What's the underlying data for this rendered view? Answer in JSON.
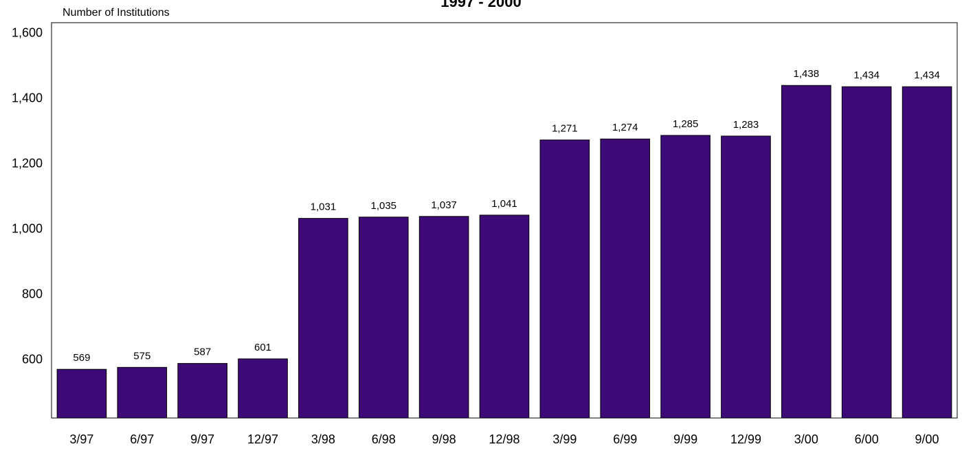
{
  "chart_data": {
    "type": "bar",
    "title": "1997 - 2000",
    "ylabel": "Number of Institutions",
    "xlabel": "",
    "categories": [
      "3/97",
      "6/97",
      "9/97",
      "12/97",
      "3/98",
      "6/98",
      "9/98",
      "12/98",
      "3/99",
      "6/99",
      "9/99",
      "12/99",
      "3/00",
      "6/00",
      "9/00"
    ],
    "values": [
      569,
      575,
      587,
      601,
      1031,
      1035,
      1037,
      1041,
      1271,
      1274,
      1285,
      1283,
      1438,
      1434,
      1434
    ],
    "value_labels": [
      "569",
      "575",
      "587",
      "601",
      "1,031",
      "1,035",
      "1,037",
      "1,041",
      "1,271",
      "1,274",
      "1,285",
      "1,283",
      "1,438",
      "1,434",
      "1,434"
    ],
    "ylim": [
      420,
      1630
    ],
    "yticks": [
      600,
      800,
      1000,
      1200,
      1400,
      1600
    ],
    "ytick_labels": [
      "600",
      "800",
      "1,000",
      "1,200",
      "1,400",
      "1,600"
    ],
    "grid": false,
    "legend": "none",
    "colors": {
      "bar": "#3d0a78",
      "bar_stroke": "#000000"
    }
  }
}
